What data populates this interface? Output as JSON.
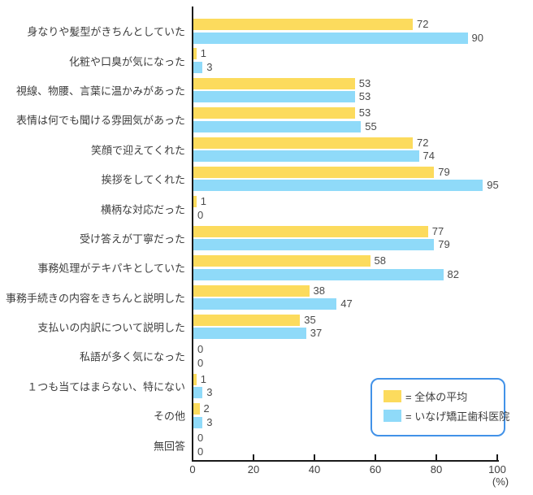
{
  "chart_data": {
    "type": "bar",
    "orientation": "horizontal",
    "title": "",
    "categories": [
      "身なりや髪型がきちんとしていた",
      "化粧や口臭が気になった",
      "視線、物腰、言葉に温かみがあった",
      "表情は何でも聞ける雰囲気があった",
      "笑顔で迎えてくれた",
      "挨拶をしてくれた",
      "横柄な対応だった",
      "受け答えが丁寧だった",
      "事務処理がテキパキとしていた",
      "事務手続きの内容をきちんと説明した",
      "支払いの内訳について説明した",
      "私語が多く気になった",
      "１つも当てはまらない、特にない",
      "その他",
      "無回答"
    ],
    "series": [
      {
        "name": "全体の平均",
        "color": "#FCDB5D",
        "values": [
          72,
          1,
          53,
          53,
          72,
          79,
          1,
          77,
          58,
          38,
          35,
          0,
          1,
          2,
          0
        ]
      },
      {
        "name": "いなげ矯正歯科医院",
        "color": "#8FDAF9",
        "values": [
          90,
          3,
          53,
          55,
          74,
          95,
          0,
          79,
          82,
          47,
          37,
          0,
          3,
          3,
          0
        ]
      }
    ],
    "xlim": [
      0,
      100
    ],
    "xticks": [
      0,
      20,
      40,
      60,
      80,
      100
    ],
    "x_unit_label": "(%)",
    "value_labels_shown": true,
    "grid": false,
    "legend_position": "bottom-right-inside"
  },
  "legend": {
    "border_color": "#4292E8",
    "items": [
      {
        "label": "= 全体の平均",
        "color": "#FCDB5D"
      },
      {
        "label": "= いなげ矯正歯科医院",
        "color": "#8FDAF9"
      }
    ]
  },
  "colors": {
    "axis": "#1a1a1a",
    "text": "#3d3d3d",
    "background": "#ffffff"
  }
}
